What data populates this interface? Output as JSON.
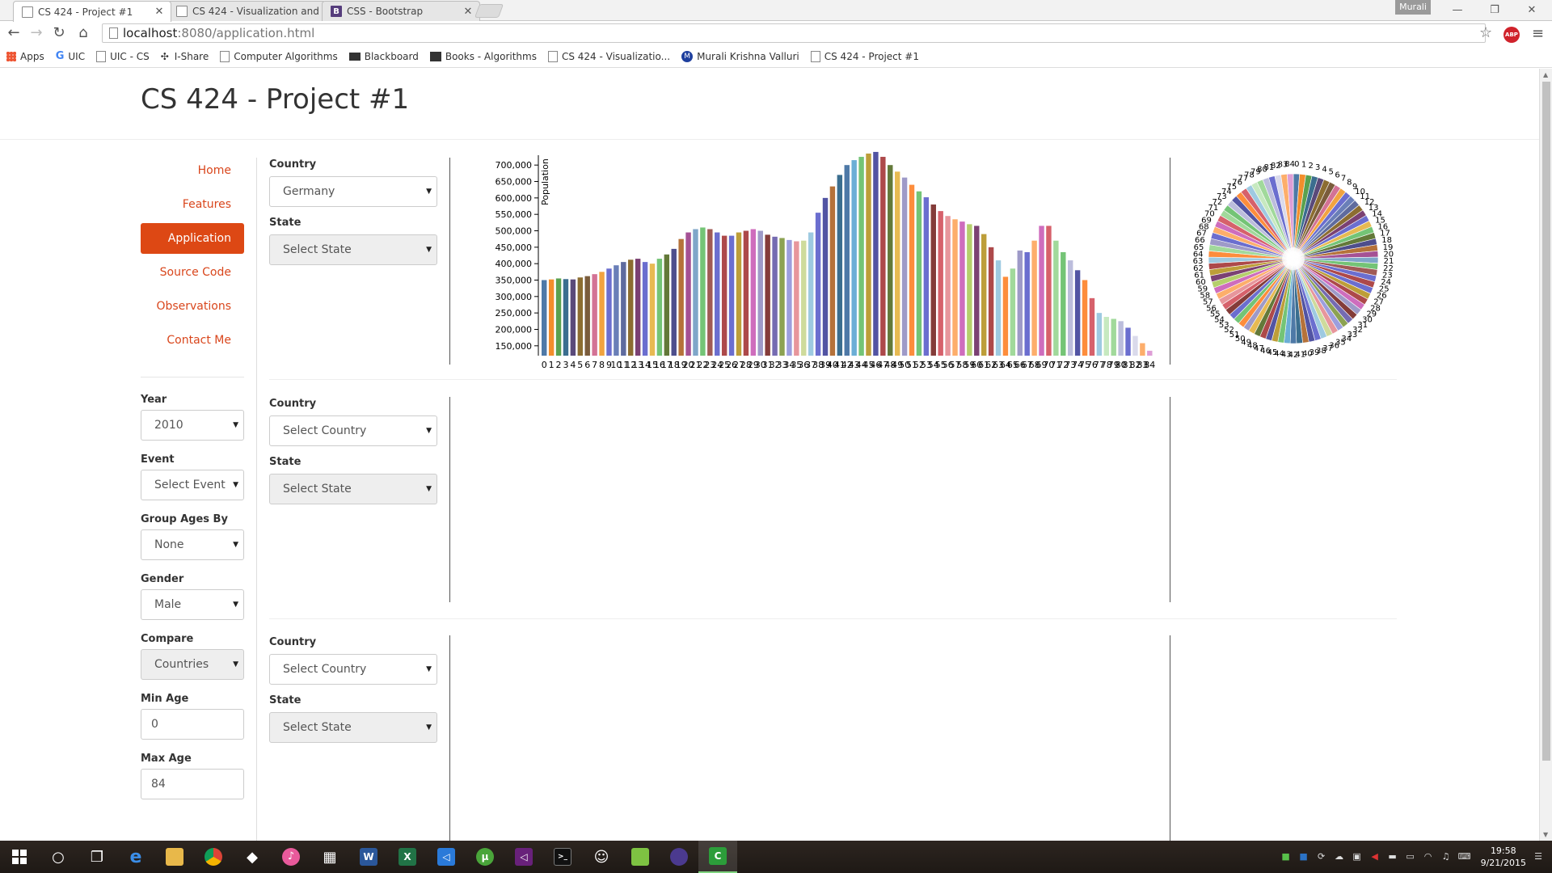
{
  "browser": {
    "tabs": [
      {
        "title": "CS 424 - Project #1",
        "active": true
      },
      {
        "title": "CS 424 - Visualization and",
        "active": false
      },
      {
        "title": "CSS - Bootstrap",
        "active": false
      }
    ],
    "user_name": "Murali",
    "url_host": "localhost",
    "url_path": ":8080/application.html",
    "bookmarks": [
      "Apps",
      "UIC",
      "UIC - CS",
      "I-Share",
      "Computer Algorithms",
      "Blackboard",
      "Books - Algorithms",
      "CS 424 - Visualizatio...",
      "Murali Krishna Valluri",
      "CS 424 - Project #1"
    ],
    "abp_label": "ABP"
  },
  "page": {
    "title": "CS 424 - Project #1",
    "nav": [
      "Home",
      "Features",
      "Application",
      "Source Code",
      "Observations",
      "Contact Me"
    ],
    "active_nav": "Application",
    "accent_color": "#dd4814"
  },
  "filters": {
    "year_label": "Year",
    "year_value": "2010",
    "event_label": "Event",
    "event_value": "Select Event",
    "group_label": "Group Ages By",
    "group_value": "None",
    "gender_label": "Gender",
    "gender_value": "Male",
    "compare_label": "Compare",
    "compare_value": "Countries",
    "min_age_label": "Min Age",
    "min_age_value": "0",
    "max_age_label": "Max Age",
    "max_age_value": "84"
  },
  "panels": [
    {
      "country_label": "Country",
      "country_value": "Germany",
      "state_label": "State",
      "state_value": "Select State"
    },
    {
      "country_label": "Country",
      "country_value": "Select Country",
      "state_label": "State",
      "state_value": "Select State"
    },
    {
      "country_label": "Country",
      "country_value": "Select Country",
      "state_label": "State",
      "state_value": "Select State"
    }
  ],
  "chart_data": [
    {
      "type": "bar",
      "ylabel": "Population",
      "xlabel": "",
      "ylim": [
        120000,
        730000
      ],
      "yticks": [
        "150,000",
        "200,000",
        "250,000",
        "300,000",
        "350,000",
        "400,000",
        "450,000",
        "500,000",
        "550,000",
        "600,000",
        "650,000",
        "700,000"
      ],
      "categories": [
        "0",
        "1",
        "2",
        "3",
        "4",
        "5",
        "6",
        "7",
        "8",
        "9",
        "10",
        "11",
        "12",
        "13",
        "14",
        "15",
        "16",
        "17",
        "18",
        "19",
        "20",
        "21",
        "22",
        "23",
        "24",
        "25",
        "26",
        "27",
        "28",
        "29",
        "30",
        "31",
        "32",
        "33",
        "34",
        "35",
        "36",
        "37",
        "38",
        "39",
        "40",
        "41",
        "42",
        "43",
        "44",
        "45",
        "46",
        "47",
        "48",
        "49",
        "50",
        "51",
        "52",
        "53",
        "54",
        "55",
        "56",
        "57",
        "58",
        "59",
        "60",
        "61",
        "62",
        "63",
        "64",
        "65",
        "66",
        "67",
        "68",
        "69",
        "70",
        "71",
        "72",
        "73",
        "74",
        "75",
        "76",
        "77",
        "78",
        "79",
        "80",
        "81",
        "82",
        "83",
        "84"
      ],
      "values": [
        350000,
        352000,
        355000,
        353000,
        352000,
        358000,
        362000,
        368000,
        375000,
        385000,
        395000,
        405000,
        412000,
        415000,
        405000,
        400000,
        415000,
        428000,
        445000,
        475000,
        495000,
        505000,
        510000,
        505000,
        495000,
        485000,
        485000,
        495000,
        500000,
        505000,
        500000,
        488000,
        482000,
        478000,
        472000,
        468000,
        470000,
        495000,
        555000,
        600000,
        635000,
        670000,
        700000,
        715000,
        725000,
        735000,
        740000,
        725000,
        700000,
        680000,
        662000,
        640000,
        620000,
        602000,
        580000,
        560000,
        545000,
        535000,
        528000,
        520000,
        515000,
        490000,
        450000,
        410000,
        360000,
        385000,
        440000,
        435000,
        470000,
        515000,
        515000,
        470000,
        435000,
        410000,
        380000,
        350000,
        295000,
        250000,
        238000,
        232000,
        225000,
        205000,
        180000,
        158000,
        135000
      ],
      "colors": [
        "#4e79a7",
        "#f28e2b",
        "#59a14f",
        "#3b6e8f",
        "#5a4a7a",
        "#8c6d31",
        "#7a5c3c",
        "#d37295",
        "#f1a340",
        "#6b6ecf",
        "#6a7fb8",
        "#5f6b9e",
        "#8c6d31",
        "#7b4173",
        "#6b6ecf",
        "#e7ba52",
        "#74c476",
        "#637939",
        "#4e4e8c",
        "#b5723a",
        "#a55194",
        "#7fa6c9",
        "#74c476",
        "#a05a55",
        "#6b6ecf",
        "#ad494a",
        "#6b6ecf",
        "#bd9e39",
        "#ad494a",
        "#ce6dbd",
        "#9e9ac8",
        "#843c39",
        "#756bb1",
        "#8ca252",
        "#9c9ede",
        "#e7969c",
        "#cedb9c",
        "#9ecae1",
        "#6b6ecf",
        "#5254a3",
        "#b5723a",
        "#3b6e8f",
        "#4e79a7",
        "#6baed6",
        "#74c476",
        "#bd9e39",
        "#5254a3",
        "#ad494a",
        "#637939",
        "#e7ba52",
        "#9e9ac8",
        "#fd8d3c",
        "#74c476",
        "#6b6ecf",
        "#843c39",
        "#d6616b",
        "#e7969c",
        "#fdae6b",
        "#ce6dbd",
        "#b5cf6b",
        "#7b4173",
        "#bd9e39",
        "#ad494a",
        "#9ecae1",
        "#fd8d3c",
        "#a1d99b",
        "#9e9ac8",
        "#6b6ecf",
        "#fdae6b",
        "#ce6dbd",
        "#d6616b",
        "#a1d99b",
        "#74c476",
        "#bcbddc",
        "#5254a3",
        "#fd8d3c",
        "#d6616b",
        "#9ecae1",
        "#c7e9c0",
        "#a1d99b",
        "#bcbddc",
        "#6b6ecf",
        "#dadaeb",
        "#fdae6b",
        "#de9ed6"
      ]
    },
    {
      "type": "pie",
      "categories": [
        "0",
        "1",
        "2",
        "3",
        "4",
        "5",
        "6",
        "7",
        "8",
        "9",
        "10",
        "11",
        "12",
        "13",
        "14",
        "15",
        "16",
        "17",
        "18",
        "19",
        "20",
        "21",
        "22",
        "23",
        "24",
        "25",
        "26",
        "27",
        "28",
        "29",
        "30",
        "31",
        "32",
        "33",
        "34",
        "35",
        "36",
        "37",
        "38",
        "39",
        "40",
        "41",
        "42",
        "43",
        "44",
        "45",
        "46",
        "47",
        "48",
        "49",
        "50",
        "51",
        "52",
        "53",
        "54",
        "55",
        "56",
        "57",
        "58",
        "59",
        "60",
        "61",
        "62",
        "63",
        "64",
        "65",
        "66",
        "67",
        "68",
        "69",
        "70",
        "71",
        "72",
        "73",
        "74",
        "75",
        "76",
        "77",
        "78",
        "79",
        "80",
        "81",
        "82",
        "83",
        "84"
      ]
    }
  ],
  "taskbar": {
    "time": "19:58",
    "date": "9/21/2015"
  }
}
